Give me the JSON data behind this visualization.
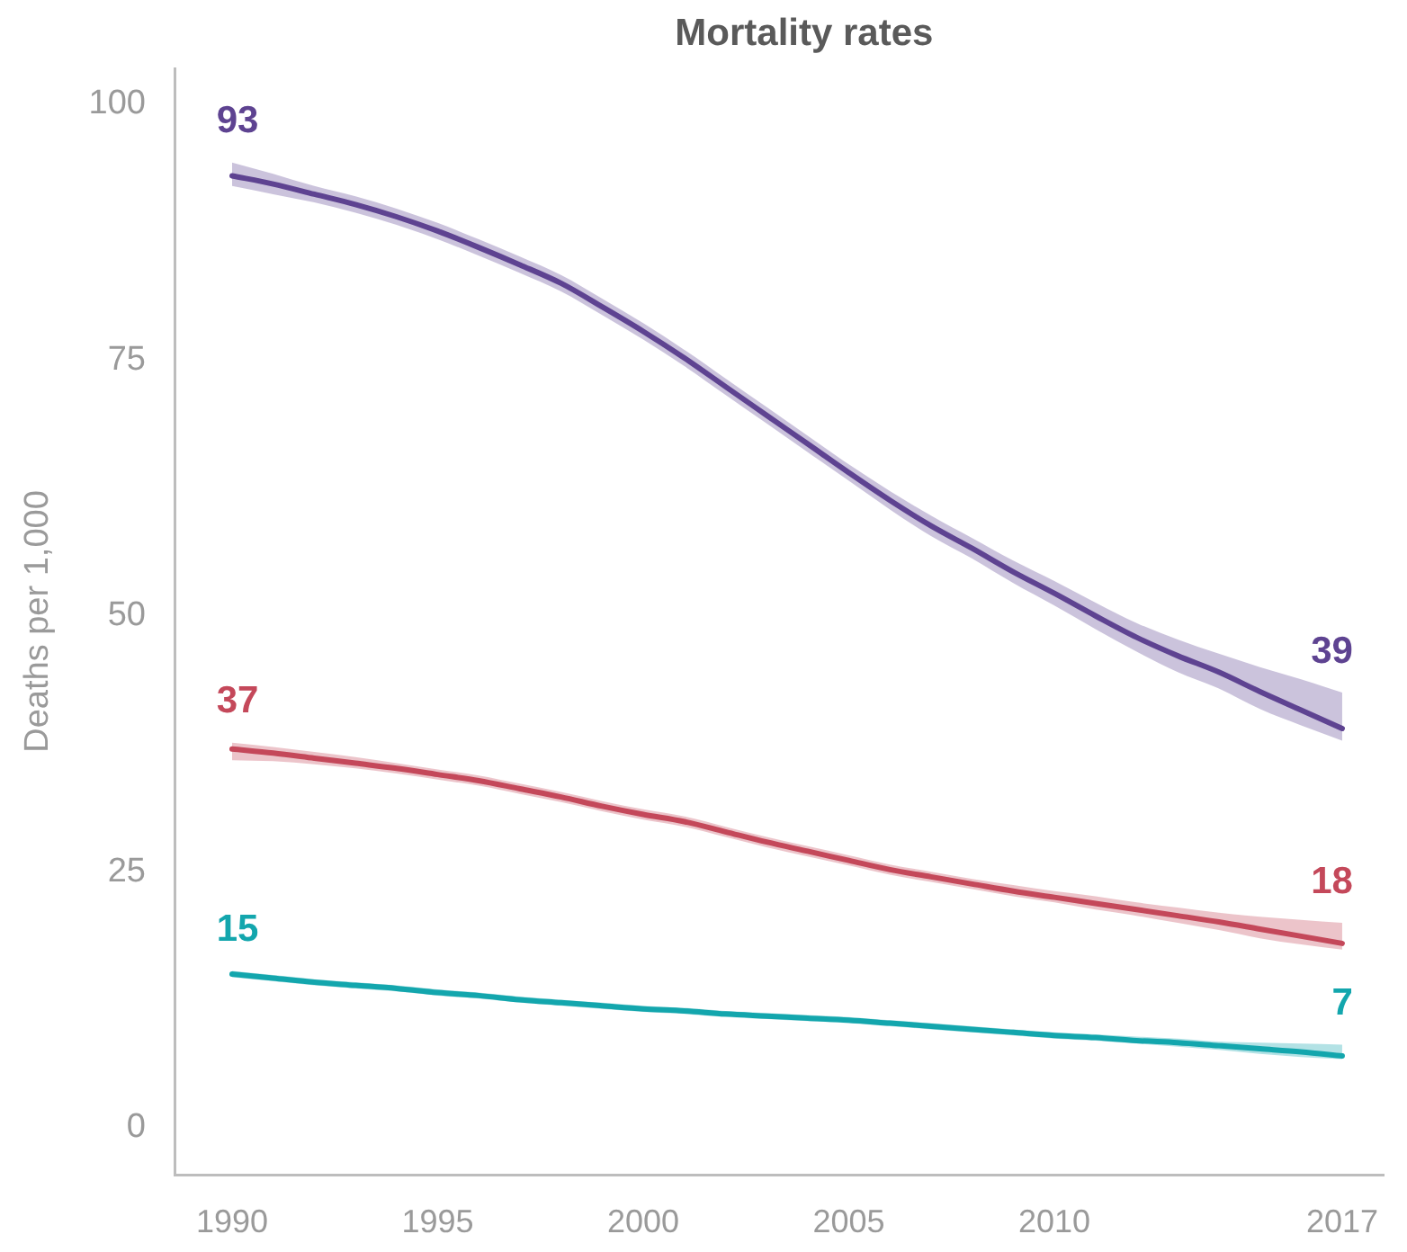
{
  "chart_data": {
    "type": "line",
    "title": "Mortality rates",
    "ylabel": "Deaths per 1,000",
    "x": [
      1990,
      1991,
      1992,
      1993,
      1994,
      1995,
      1996,
      1997,
      1998,
      1999,
      2000,
      2001,
      2002,
      2003,
      2004,
      2005,
      2006,
      2007,
      2008,
      2009,
      2010,
      2011,
      2012,
      2013,
      2014,
      2015,
      2016,
      2017
    ],
    "xlim": [
      1988.6,
      2018
    ],
    "xticks": [
      1990,
      1995,
      2000,
      2005,
      2010,
      2017
    ],
    "ylim": [
      -4.6,
      103.5
    ],
    "yticks": [
      0,
      25,
      50,
      75,
      100
    ],
    "grid": false,
    "legend": false,
    "marker": "none",
    "line_style": "solid",
    "series": [
      {
        "color": "#5e4391",
        "values": [
          93,
          92.2,
          91.2,
          90.2,
          89,
          87.6,
          86,
          84.3,
          82.5,
          80.2,
          77.8,
          75.2,
          72.4,
          69.6,
          66.8,
          64,
          61.3,
          58.8,
          56.6,
          54.3,
          52.2,
          50,
          47.9,
          46.1,
          44.5,
          42.6,
          40.8,
          39
        ],
        "upper": [
          94.3,
          93.2,
          92,
          91,
          89.8,
          88.4,
          86.8,
          85.1,
          83.3,
          81,
          78.6,
          76,
          73.2,
          70.4,
          67.6,
          64.8,
          62.2,
          59.8,
          57.6,
          55.4,
          53.4,
          51.3,
          49.3,
          47.7,
          46.3,
          45,
          43.8,
          42.5
        ],
        "lower": [
          92,
          91.2,
          90.4,
          89.4,
          88.2,
          86.8,
          85.2,
          83.5,
          81.7,
          79.4,
          77,
          74.4,
          71.6,
          68.8,
          66,
          63.2,
          60.4,
          57.8,
          55.6,
          53.2,
          51,
          48.7,
          46.5,
          44.5,
          42.9,
          40.9,
          39.3,
          37.8
        ],
        "value_labels": [
          "93",
          null,
          null,
          null,
          null,
          null,
          null,
          null,
          null,
          null,
          null,
          null,
          null,
          null,
          null,
          null,
          null,
          null,
          null,
          null,
          null,
          null,
          null,
          null,
          null,
          null,
          null,
          "39"
        ]
      },
      {
        "color": "#c4485a",
        "values": [
          37,
          36.6,
          36.1,
          35.6,
          35.1,
          34.5,
          33.9,
          33.1,
          32.3,
          31.4,
          30.6,
          29.9,
          28.9,
          27.9,
          27,
          26.1,
          25.2,
          24.5,
          23.8,
          23.1,
          22.5,
          21.9,
          21.3,
          20.7,
          20.1,
          19.4,
          18.7,
          18
        ],
        "upper": [
          37.6,
          37.2,
          36.7,
          36.2,
          35.6,
          35,
          34.4,
          33.6,
          32.8,
          31.9,
          31.1,
          30.4,
          29.4,
          28.4,
          27.5,
          26.6,
          25.7,
          25,
          24.3,
          23.7,
          23.1,
          22.6,
          22,
          21.5,
          21,
          20.6,
          20.3,
          20
        ],
        "lower": [
          35.9,
          35.8,
          35.5,
          35.1,
          34.6,
          34,
          33.4,
          32.6,
          31.8,
          30.9,
          30.1,
          29.4,
          28.4,
          27.4,
          26.5,
          25.6,
          24.7,
          24,
          23.3,
          22.6,
          22,
          21.3,
          20.7,
          20,
          19.3,
          18.5,
          17.9,
          17.4
        ],
        "value_labels": [
          "37",
          null,
          null,
          null,
          null,
          null,
          null,
          null,
          null,
          null,
          null,
          null,
          null,
          null,
          null,
          null,
          null,
          null,
          null,
          null,
          null,
          null,
          null,
          null,
          null,
          null,
          null,
          "18"
        ]
      },
      {
        "color": "#13a6ad",
        "values": [
          15,
          14.6,
          14.2,
          13.9,
          13.6,
          13.2,
          12.9,
          12.5,
          12.2,
          11.9,
          11.6,
          11.4,
          11.1,
          10.9,
          10.7,
          10.5,
          10.2,
          9.9,
          9.6,
          9.3,
          9,
          8.8,
          8.5,
          8.3,
          8,
          7.7,
          7.4,
          7
        ],
        "upper": [
          15.3,
          14.9,
          14.5,
          14.2,
          13.9,
          13.5,
          13.2,
          12.8,
          12.5,
          12.2,
          11.9,
          11.7,
          11.4,
          11.2,
          11,
          10.8,
          10.5,
          10.2,
          9.9,
          9.6,
          9.3,
          9.1,
          8.9,
          8.7,
          8.4,
          8.3,
          8.2,
          8.1
        ],
        "lower": [
          14.7,
          14.3,
          13.9,
          13.6,
          13.3,
          12.9,
          12.6,
          12.2,
          11.9,
          11.6,
          11.3,
          11.1,
          10.8,
          10.6,
          10.4,
          10.2,
          9.9,
          9.6,
          9.3,
          9,
          8.7,
          8.5,
          8.2,
          7.9,
          7.6,
          7.2,
          6.9,
          6.7
        ],
        "value_labels": [
          "15",
          null,
          null,
          null,
          null,
          null,
          null,
          null,
          null,
          null,
          null,
          null,
          null,
          null,
          null,
          null,
          null,
          null,
          null,
          null,
          null,
          null,
          null,
          null,
          null,
          null,
          null,
          "7"
        ]
      }
    ]
  }
}
